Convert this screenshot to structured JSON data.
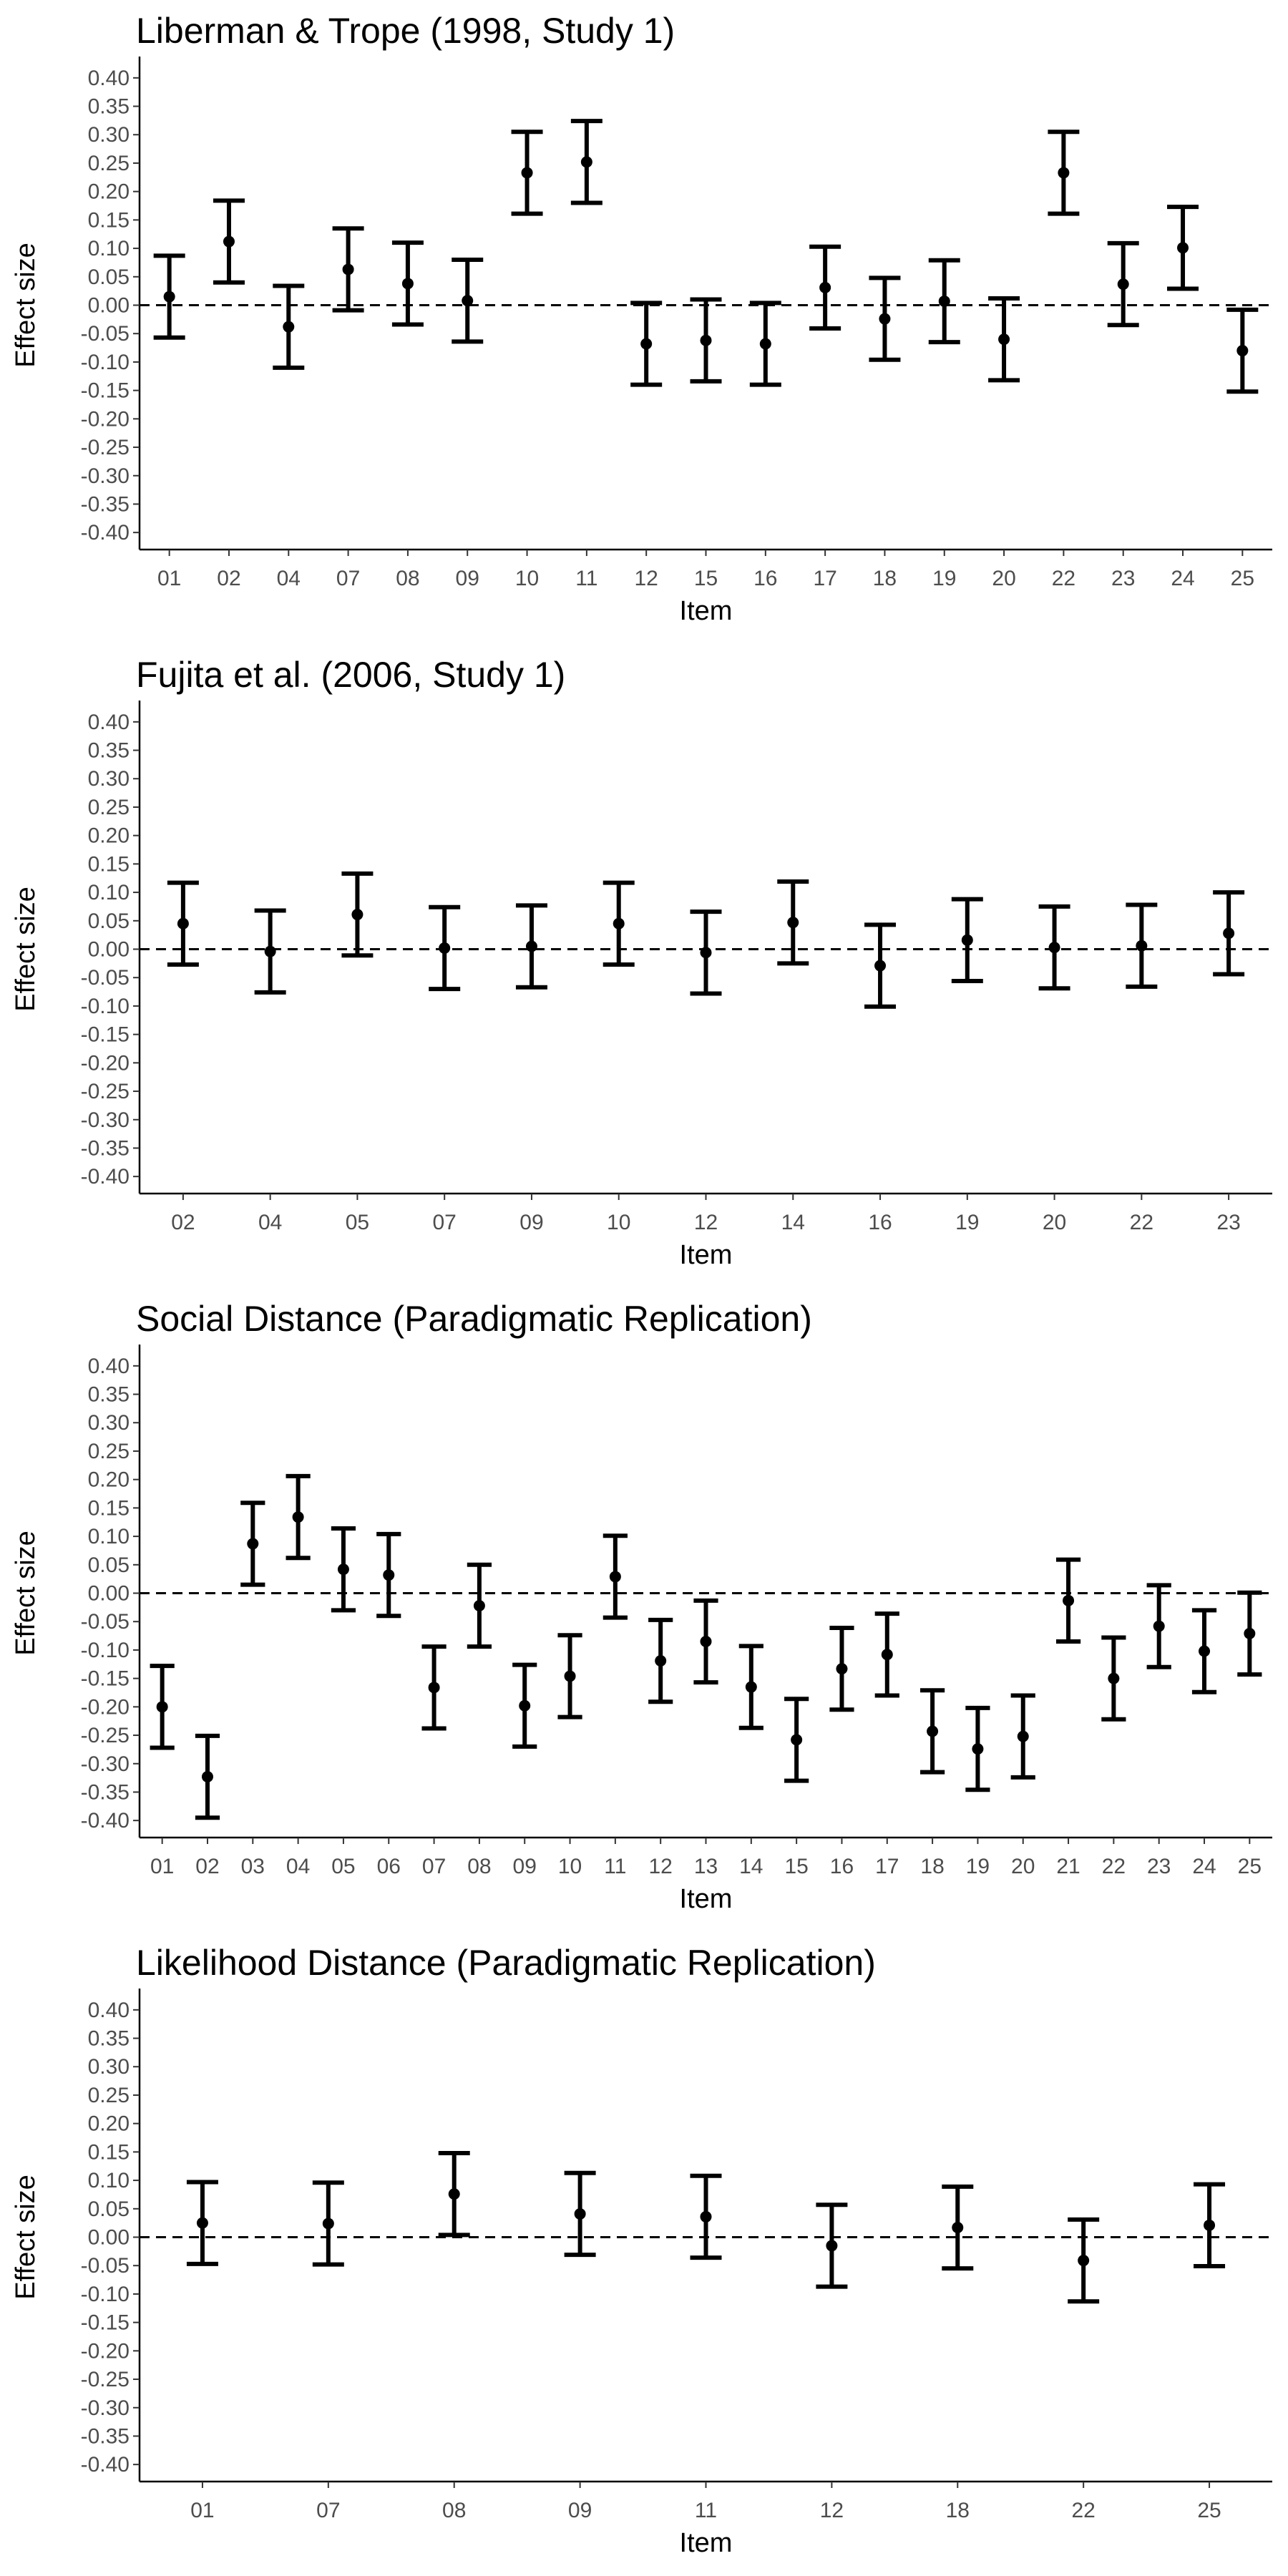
{
  "chart_data": [
    {
      "type": "errorbar",
      "title": "Liberman & Trope (1998, Study 1)",
      "xlabel": "Item",
      "ylabel": "Effect size",
      "ylim": [
        -0.43,
        0.43
      ],
      "yticks": [
        "0.40",
        "0.35",
        "0.30",
        "0.25",
        "0.20",
        "0.15",
        "0.10",
        "0.05",
        "0.00",
        "-0.05",
        "-0.10",
        "-0.15",
        "-0.20",
        "-0.25",
        "-0.30",
        "-0.35",
        "-0.40"
      ],
      "reference_line": 0,
      "grid": false,
      "categories": [
        "01",
        "02",
        "04",
        "07",
        "08",
        "09",
        "10",
        "11",
        "12",
        "15",
        "16",
        "17",
        "18",
        "19",
        "20",
        "22",
        "23",
        "24",
        "25"
      ],
      "values": [
        0.015,
        0.112,
        -0.038,
        0.063,
        0.038,
        0.008,
        0.233,
        0.252,
        -0.068,
        -0.062,
        -0.068,
        0.031,
        -0.024,
        0.007,
        -0.06,
        0.233,
        0.037,
        0.101,
        -0.08
      ],
      "lower": [
        -0.057,
        0.04,
        -0.11,
        -0.009,
        -0.034,
        -0.064,
        0.161,
        0.18,
        -0.14,
        -0.134,
        -0.14,
        -0.041,
        -0.096,
        -0.065,
        -0.132,
        0.161,
        -0.035,
        0.029,
        -0.152
      ],
      "upper": [
        0.087,
        0.184,
        0.034,
        0.135,
        0.11,
        0.08,
        0.305,
        0.324,
        0.004,
        0.01,
        0.004,
        0.103,
        0.048,
        0.079,
        0.012,
        0.305,
        0.109,
        0.173,
        -0.008
      ]
    },
    {
      "type": "errorbar",
      "title": "Fujita et al. (2006, Study 1)",
      "xlabel": "Item",
      "ylabel": "Effect size",
      "ylim": [
        -0.43,
        0.43
      ],
      "yticks": [
        "0.40",
        "0.35",
        "0.30",
        "0.25",
        "0.20",
        "0.15",
        "0.10",
        "0.05",
        "0.00",
        "-0.05",
        "-0.10",
        "-0.15",
        "-0.20",
        "-0.25",
        "-0.30",
        "-0.35",
        "-0.40"
      ],
      "reference_line": 0,
      "grid": false,
      "categories": [
        "02",
        "04",
        "05",
        "07",
        "09",
        "10",
        "12",
        "14",
        "16",
        "19",
        "20",
        "22",
        "23"
      ],
      "values": [
        0.045,
        -0.004,
        0.061,
        0.002,
        0.005,
        0.045,
        -0.006,
        0.047,
        -0.029,
        0.016,
        0.003,
        0.006,
        0.028
      ],
      "lower": [
        -0.027,
        -0.076,
        -0.011,
        -0.07,
        -0.067,
        -0.027,
        -0.078,
        -0.025,
        -0.101,
        -0.056,
        -0.069,
        -0.066,
        -0.044
      ],
      "upper": [
        0.117,
        0.068,
        0.133,
        0.074,
        0.077,
        0.117,
        0.066,
        0.119,
        0.043,
        0.088,
        0.075,
        0.078,
        0.1
      ]
    },
    {
      "type": "errorbar",
      "title": "Social Distance (Paradigmatic Replication)",
      "xlabel": "Item",
      "ylabel": "Effect size",
      "ylim": [
        -0.43,
        0.43
      ],
      "yticks": [
        "0.40",
        "0.35",
        "0.30",
        "0.25",
        "0.20",
        "0.15",
        "0.10",
        "0.05",
        "0.00",
        "-0.05",
        "-0.10",
        "-0.15",
        "-0.20",
        "-0.25",
        "-0.30",
        "-0.35",
        "-0.40"
      ],
      "reference_line": 0,
      "grid": false,
      "categories": [
        "01",
        "02",
        "03",
        "04",
        "05",
        "06",
        "07",
        "08",
        "09",
        "10",
        "11",
        "12",
        "13",
        "14",
        "15",
        "16",
        "17",
        "18",
        "19",
        "20",
        "21",
        "22",
        "23",
        "24",
        "25"
      ],
      "values": [
        -0.2,
        -0.323,
        0.087,
        0.134,
        0.042,
        0.032,
        -0.166,
        -0.022,
        -0.198,
        -0.146,
        0.029,
        -0.119,
        -0.085,
        -0.165,
        -0.258,
        -0.133,
        -0.108,
        -0.243,
        -0.274,
        -0.252,
        -0.013,
        -0.15,
        -0.058,
        -0.102,
        -0.071
      ],
      "lower": [
        -0.272,
        -0.395,
        0.015,
        0.062,
        -0.03,
        -0.04,
        -0.238,
        -0.094,
        -0.27,
        -0.218,
        -0.043,
        -0.191,
        -0.157,
        -0.237,
        -0.33,
        -0.205,
        -0.18,
        -0.315,
        -0.346,
        -0.324,
        -0.085,
        -0.222,
        -0.13,
        -0.174,
        -0.143
      ],
      "upper": [
        -0.128,
        -0.251,
        0.159,
        0.206,
        0.114,
        0.104,
        -0.094,
        0.05,
        -0.126,
        -0.074,
        0.101,
        -0.047,
        -0.013,
        -0.093,
        -0.186,
        -0.061,
        -0.036,
        -0.171,
        -0.202,
        -0.18,
        0.059,
        -0.078,
        0.014,
        -0.03,
        0.001
      ]
    },
    {
      "type": "errorbar",
      "title": "Likelihood Distance (Paradigmatic Replication)",
      "xlabel": "Item",
      "ylabel": "Effect size",
      "ylim": [
        -0.43,
        0.43
      ],
      "yticks": [
        "0.40",
        "0.35",
        "0.30",
        "0.25",
        "0.20",
        "0.15",
        "0.10",
        "0.05",
        "0.00",
        "-0.05",
        "-0.10",
        "-0.15",
        "-0.20",
        "-0.25",
        "-0.30",
        "-0.35",
        "-0.40"
      ],
      "reference_line": 0,
      "grid": false,
      "categories": [
        "01",
        "07",
        "08",
        "09",
        "11",
        "12",
        "18",
        "22",
        "25"
      ],
      "values": [
        0.025,
        0.024,
        0.076,
        0.041,
        0.036,
        -0.015,
        0.017,
        -0.041,
        0.021
      ],
      "lower": [
        -0.047,
        -0.048,
        0.004,
        -0.031,
        -0.036,
        -0.087,
        -0.055,
        -0.113,
        -0.051
      ],
      "upper": [
        0.097,
        0.096,
        0.148,
        0.113,
        0.108,
        0.057,
        0.089,
        0.031,
        0.093
      ]
    }
  ]
}
